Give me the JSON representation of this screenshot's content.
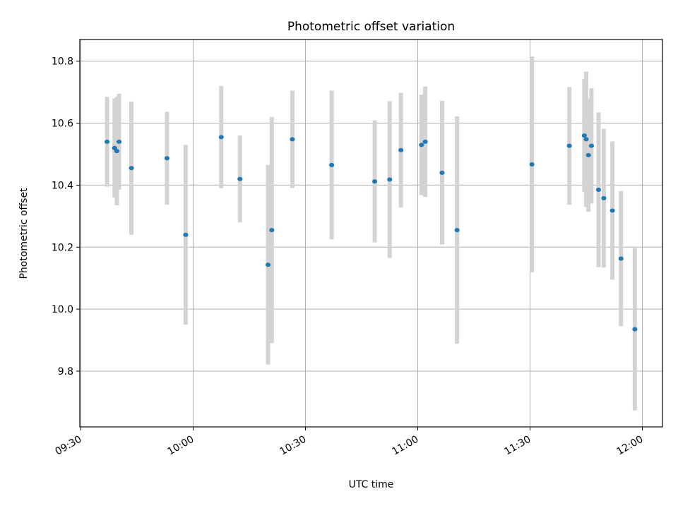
{
  "chart_data": {
    "type": "scatter",
    "title": "Photometric offset variation",
    "xlabel": "UTC time",
    "ylabel": "Photometric offset",
    "x_ticks": [
      "09:30",
      "10:00",
      "10:30",
      "11:00",
      "11:30",
      "12:00"
    ],
    "xlim": [
      "09:30",
      "12:05"
    ],
    "y_ticks": [
      9.8,
      10.0,
      10.2,
      10.4,
      10.6,
      10.8
    ],
    "ylim": [
      9.62,
      10.87
    ],
    "grid": true,
    "colors": {
      "marker": "#1f77b4",
      "errorbar": "#d3d3d3"
    },
    "series": [
      {
        "points": [
          {
            "t": "09:37",
            "y": 10.54,
            "err": 0.145
          },
          {
            "t": "09:39",
            "y": 10.52,
            "err": 0.16
          },
          {
            "t": "09:39.6",
            "y": 10.51,
            "err": 0.175
          },
          {
            "t": "09:40.2",
            "y": 10.54,
            "err": 0.155
          },
          {
            "t": "09:43.5",
            "y": 10.455,
            "err": 0.215
          },
          {
            "t": "09:53",
            "y": 10.487,
            "err": 0.15
          },
          {
            "t": "09:58",
            "y": 10.24,
            "err": 0.29
          },
          {
            "t": "10:07.5",
            "y": 10.555,
            "err": 0.165
          },
          {
            "t": "10:12.5",
            "y": 10.42,
            "err": 0.14
          },
          {
            "t": "10:20",
            "y": 10.143,
            "err": 0.322
          },
          {
            "t": "10:21",
            "y": 10.255,
            "err": 0.365
          },
          {
            "t": "10:26.5",
            "y": 10.548,
            "err": 0.157
          },
          {
            "t": "10:37",
            "y": 10.465,
            "err": 0.24
          },
          {
            "t": "10:48.5",
            "y": 10.412,
            "err": 0.197
          },
          {
            "t": "10:52.5",
            "y": 10.418,
            "err": 0.253
          },
          {
            "t": "10:55.5",
            "y": 10.513,
            "err": 0.185
          },
          {
            "t": "11:01",
            "y": 10.53,
            "err": 0.162
          },
          {
            "t": "11:02",
            "y": 10.54,
            "err": 0.178
          },
          {
            "t": "11:06.5",
            "y": 10.44,
            "err": 0.232
          },
          {
            "t": "11:10.5",
            "y": 10.255,
            "err": 0.367
          },
          {
            "t": "11:30.5",
            "y": 10.467,
            "err": 0.348
          },
          {
            "t": "11:40.5",
            "y": 10.527,
            "err": 0.19
          },
          {
            "t": "11:44.5",
            "y": 10.56,
            "err": 0.182
          },
          {
            "t": "11:45",
            "y": 10.548,
            "err": 0.218
          },
          {
            "t": "11:45.6",
            "y": 10.497,
            "err": 0.183
          },
          {
            "t": "11:46.4",
            "y": 10.527,
            "err": 0.186
          },
          {
            "t": "11:48.3",
            "y": 10.385,
            "err": 0.25
          },
          {
            "t": "11:49.7",
            "y": 10.358,
            "err": 0.224
          },
          {
            "t": "11:52",
            "y": 10.318,
            "err": 0.223
          },
          {
            "t": "11:54.3",
            "y": 10.163,
            "err": 0.218
          },
          {
            "t": "11:58",
            "y": 9.935,
            "err": 0.262
          }
        ]
      }
    ]
  }
}
